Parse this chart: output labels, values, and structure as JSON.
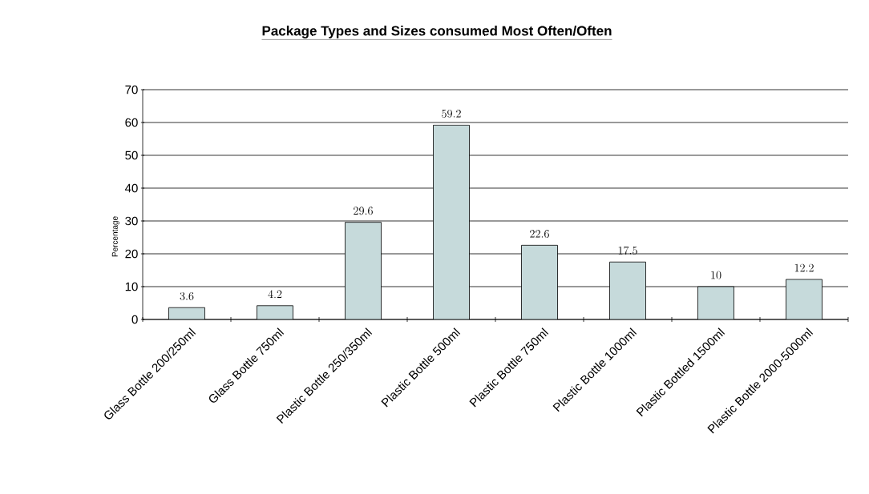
{
  "chart_data": {
    "type": "bar",
    "title": "Package Types and Sizes consumed Most Often/Often",
    "ylabel": "Percentage",
    "categories": [
      "Glass Bottle 200/250ml",
      "Glass Bottle 750ml",
      "Plastic Bottle 250/350ml",
      "Plastic Bottle 500ml",
      "Plastic Bottle 750ml",
      "Plastic Bottle 1000ml",
      "Plastic Bottled 1500ml",
      "Plastic Bottle 2000-5000ml"
    ],
    "values": [
      3.6,
      4.2,
      29.6,
      59.2,
      22.6,
      17.5,
      10,
      12.2
    ],
    "color": "#c6dadb",
    "ylim": [
      0,
      70
    ],
    "yticks": [
      0,
      10,
      20,
      30,
      40,
      50,
      60,
      70
    ],
    "grid": "y",
    "data_labels": true
  }
}
